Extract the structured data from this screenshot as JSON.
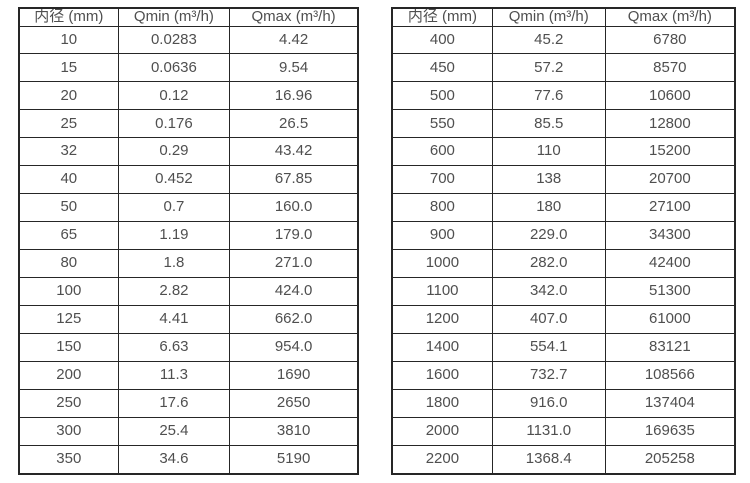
{
  "colors": {
    "background": "#ffffff",
    "border": "#262626",
    "text": "#4f4f4f"
  },
  "tables": [
    {
      "name": "flow-table-small-diameters",
      "headers": [
        "内径 (mm)",
        "Qmin (m³/h)",
        "Qmax (m³/h)"
      ],
      "rows": [
        [
          "10",
          "0.0283",
          "4.42"
        ],
        [
          "15",
          "0.0636",
          "9.54"
        ],
        [
          "20",
          "0.12",
          "16.96"
        ],
        [
          "25",
          "0.176",
          "26.5"
        ],
        [
          "32",
          "0.29",
          "43.42"
        ],
        [
          "40",
          "0.452",
          "67.85"
        ],
        [
          "50",
          "0.7",
          "160.0"
        ],
        [
          "65",
          "1.19",
          "179.0"
        ],
        [
          "80",
          "1.8",
          "271.0"
        ],
        [
          "100",
          "2.82",
          "424.0"
        ],
        [
          "125",
          "4.41",
          "662.0"
        ],
        [
          "150",
          "6.63",
          "954.0"
        ],
        [
          "200",
          "11.3",
          "1690"
        ],
        [
          "250",
          "17.6",
          "2650"
        ],
        [
          "300",
          "25.4",
          "3810"
        ],
        [
          "350",
          "34.6",
          "5190"
        ]
      ]
    },
    {
      "name": "flow-table-large-diameters",
      "headers": [
        "内径 (mm)",
        "Qmin (m³/h)",
        "Qmax (m³/h)"
      ],
      "rows": [
        [
          "400",
          "45.2",
          "6780"
        ],
        [
          "450",
          "57.2",
          "8570"
        ],
        [
          "500",
          "77.6",
          "10600"
        ],
        [
          "550",
          "85.5",
          "12800"
        ],
        [
          "600",
          "110",
          "15200"
        ],
        [
          "700",
          "138",
          "20700"
        ],
        [
          "800",
          "180",
          "27100"
        ],
        [
          "900",
          "229.0",
          "34300"
        ],
        [
          "1000",
          "282.0",
          "42400"
        ],
        [
          "1100",
          "342.0",
          "51300"
        ],
        [
          "1200",
          "407.0",
          "61000"
        ],
        [
          "1400",
          "554.1",
          "83121"
        ],
        [
          "1600",
          "732.7",
          "108566"
        ],
        [
          "1800",
          "916.0",
          "137404"
        ],
        [
          "2000",
          "1131.0",
          "169635"
        ],
        [
          "2200",
          "1368.4",
          "205258"
        ]
      ]
    }
  ]
}
